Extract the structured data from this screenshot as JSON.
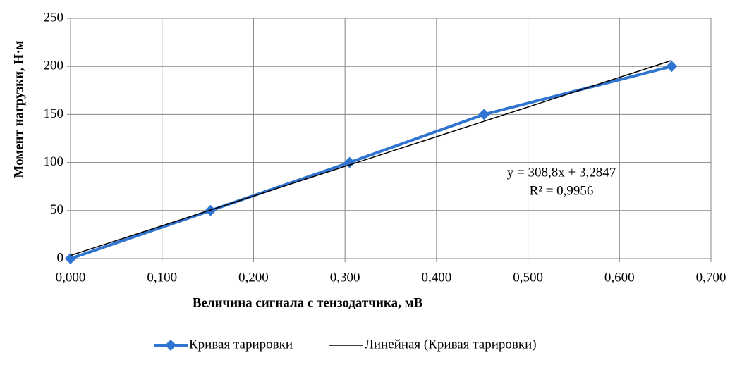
{
  "chart_data": {
    "type": "line",
    "y_label": "Момент нагрузки, Н·м",
    "x_label": "Величина сигнала с тензодатчика, мВ",
    "series": [
      {
        "name": "Кривая тарировки",
        "color": "#2f74d0",
        "marker": "diamond",
        "x": [
          0.0,
          0.153,
          0.305,
          0.452,
          0.657
        ],
        "values": [
          0,
          50,
          100,
          150,
          200
        ]
      },
      {
        "name": "Линейная (Кривая тарировки)",
        "color": "#000000",
        "x": [
          0.0,
          0.657
        ],
        "values": [
          3.3,
          206.2
        ]
      }
    ],
    "annotations": [
      "y = 308,8x + 3,2847",
      "R² = 0,9956"
    ],
    "xlim": [
      0,
      0.7
    ],
    "xticks": [
      {
        "value": 0,
        "label": "0,000"
      },
      {
        "value": 0.1,
        "label": "0,100"
      },
      {
        "value": 0.2,
        "label": "0,200"
      },
      {
        "value": 0.3,
        "label": "0,300"
      },
      {
        "value": 0.4,
        "label": "0,400"
      },
      {
        "value": 0.5,
        "label": "0,500"
      },
      {
        "value": 0.6,
        "label": "0,600"
      },
      {
        "value": 0.7,
        "label": "0,700"
      }
    ],
    "ylim": [
      0,
      250
    ],
    "yticks": [
      0,
      50,
      100,
      150,
      200,
      250
    ],
    "grid": true,
    "legend": "bottom"
  }
}
